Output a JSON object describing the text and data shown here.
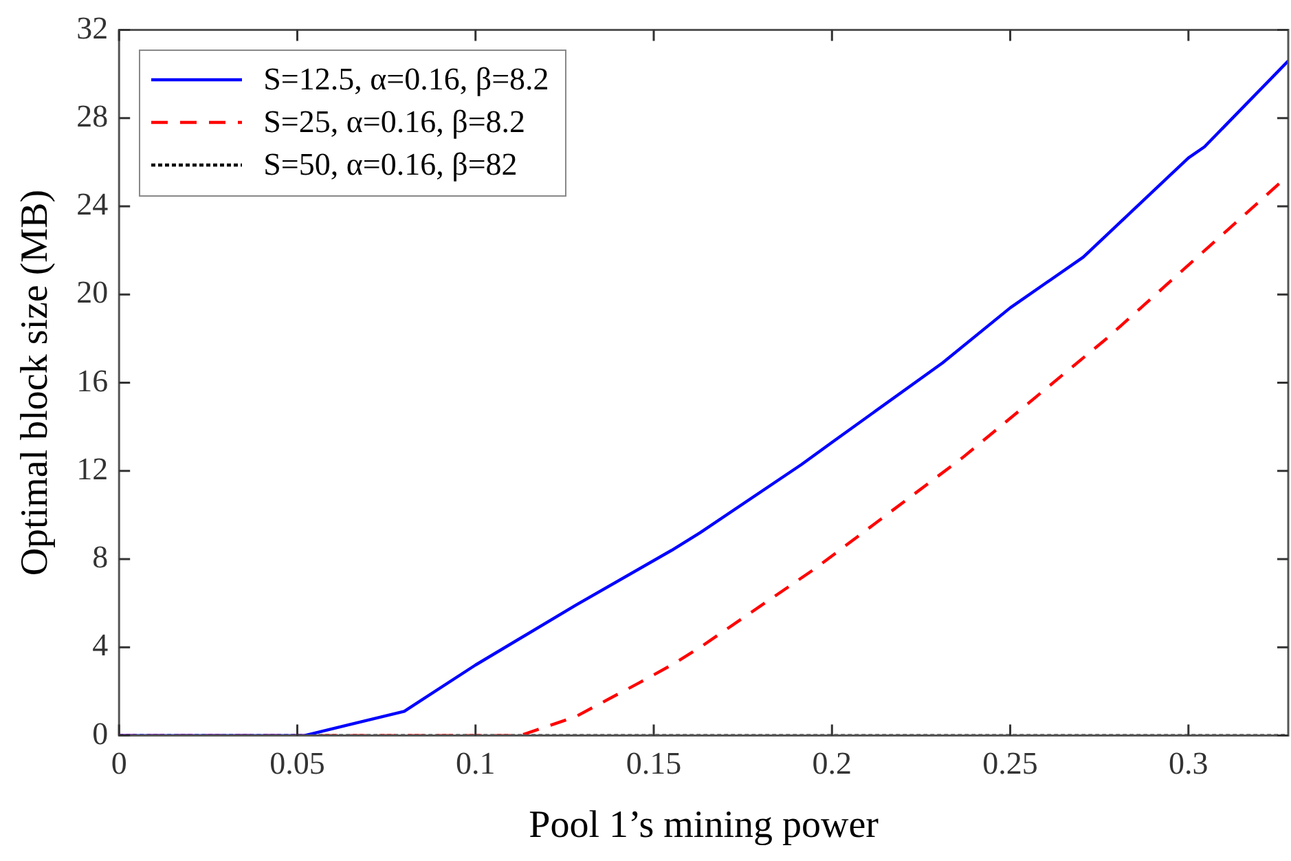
{
  "chart_data": {
    "type": "line",
    "xlabel": "Pool 1’s mining power",
    "ylabel": "Optimal block size (MB)",
    "xlim": [
      0,
      0.328
    ],
    "xticks": [
      0,
      0.05,
      0.1,
      0.15,
      0.2,
      0.25,
      0.3
    ],
    "ylim": [
      0,
      32
    ],
    "yticks": [
      0,
      4,
      8,
      12,
      16,
      20,
      24,
      28,
      32
    ],
    "legend": "top left",
    "marker": "none",
    "series": [
      {
        "name": "S=12.5, α=0.16, β=8.2",
        "color": "#0000ff",
        "line_style": "solid",
        "x": [
          0,
          0.052,
          0.08,
          0.1,
          0.128,
          0.155,
          0.163,
          0.1915,
          0.2,
          0.231,
          0.25,
          0.2705,
          0.3,
          0.3045,
          0.328
        ],
        "values": [
          0,
          0,
          1.1,
          3.2,
          5.9,
          8.4,
          9.2,
          12.3,
          13.3,
          16.9,
          19.4,
          21.7,
          26.2,
          26.7,
          30.6
        ]
      },
      {
        "name": "S=25, α=0.16, β=8.2",
        "color": "#ff0000",
        "line_style": "dashed",
        "x": [
          0,
          0.1125,
          0.128,
          0.146,
          0.155,
          0.163,
          0.1955,
          0.2366,
          0.277,
          0.328
        ],
        "values": [
          0,
          0,
          0.85,
          2.4,
          3.2,
          4.0,
          7.6,
          12.6,
          18.0,
          25.4
        ]
      },
      {
        "name": "S=50, α=0.16, β=82",
        "color": "#000000",
        "line_style": "dotted",
        "x": [
          0,
          0.328
        ],
        "values": [
          0,
          0
        ]
      }
    ]
  }
}
